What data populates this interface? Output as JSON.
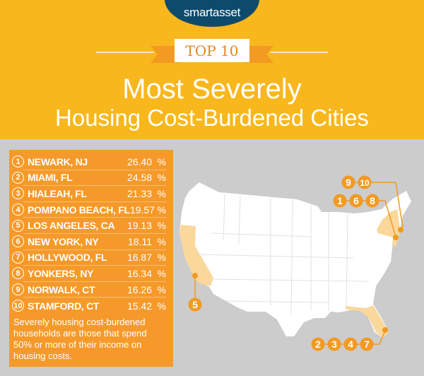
{
  "brand": {
    "logo": "smartasset",
    "trademark": "™"
  },
  "badge": "TOP 10",
  "title": {
    "line1": "Most Severely",
    "line2": "Housing Cost-Burdened Cities"
  },
  "rankings": [
    {
      "rank": "1",
      "city": "NEWARK, NJ",
      "value": "26.40",
      "unit": "%"
    },
    {
      "rank": "2",
      "city": "MIAMI, FL",
      "value": "24.58",
      "unit": "%"
    },
    {
      "rank": "3",
      "city": "HIALEAH, FL",
      "value": "21.33",
      "unit": "%"
    },
    {
      "rank": "4",
      "city": "POMPANO BEACH, FL",
      "value": "19.57",
      "unit": "%"
    },
    {
      "rank": "5",
      "city": "LOS ANGELES, CA",
      "value": "19.13",
      "unit": "%"
    },
    {
      "rank": "6",
      "city": "NEW YORK, NY",
      "value": "18.11",
      "unit": "%"
    },
    {
      "rank": "7",
      "city": "HOLLYWOOD, FL",
      "value": "16.87",
      "unit": "%"
    },
    {
      "rank": "8",
      "city": "YONKERS, NY",
      "value": "16.34",
      "unit": "%"
    },
    {
      "rank": "9",
      "city": "NORWALK, CT",
      "value": "16.26",
      "unit": "%"
    },
    {
      "rank": "10",
      "city": "STAMFORD, CT",
      "value": "15.42",
      "unit": "%"
    }
  ],
  "note": "Severely housing cost-burdened households are those that spend 50% or more of their income on housing costs.",
  "map": {
    "highlighted_states": [
      "CA",
      "NY",
      "NJ",
      "CT",
      "FL"
    ],
    "marker_groups": [
      {
        "labels": [
          "9",
          "10"
        ],
        "state": "CT"
      },
      {
        "labels": [
          "1",
          "6",
          "8"
        ],
        "state": "NY/NJ"
      },
      {
        "labels": [
          "5"
        ],
        "state": "CA"
      },
      {
        "labels": [
          "2",
          "3",
          "4",
          "7"
        ],
        "state": "FL"
      }
    ]
  },
  "colors": {
    "header": "#f8b71d",
    "panel": "#f59a2a",
    "logo_bg": "#0e4a6b",
    "highlight": "#fad89b",
    "marker": "#f29a22",
    "background": "#cccccc"
  }
}
